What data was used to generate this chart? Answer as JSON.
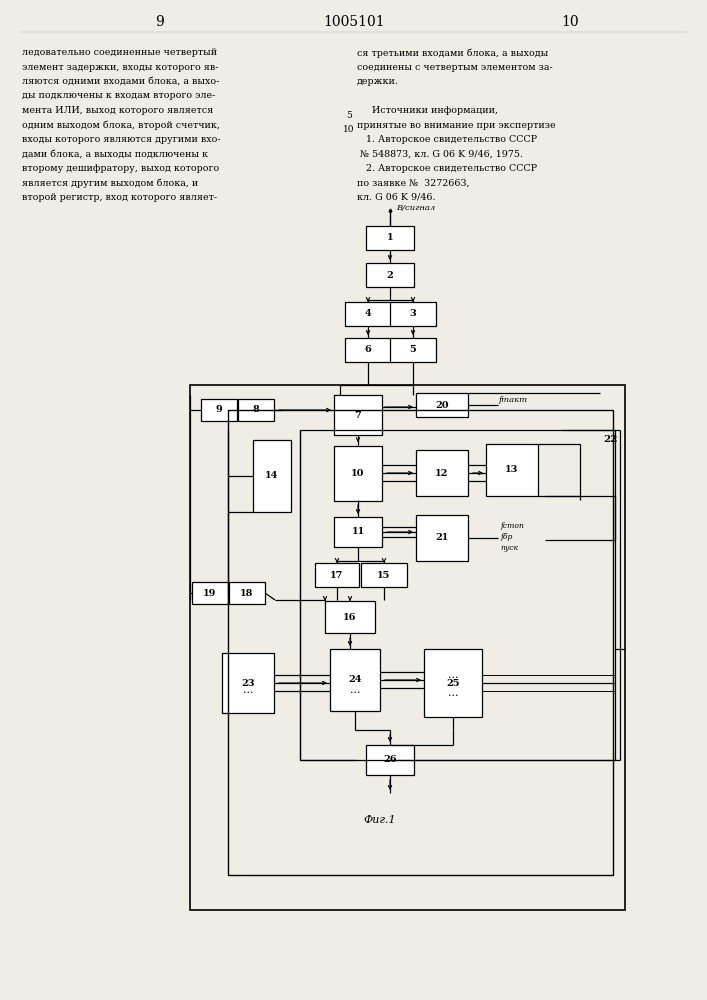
{
  "bg": "#f0ede6",
  "page_left": "9",
  "page_center": "1005101",
  "page_right": "10",
  "col_left": "ледовательно соединенные четвертый\nэлемент задержки, входы которого яв-\nляются одними входами блока, а выхо-\nды подключены к входам второго эле-\nмента ИЛИ, выход которого является\nодним выходом блока, второй счетчик,\nвходы которого являются другими вхо-\nдами блока, а выходы подключены к\nвторому дешифратору, выход которого\nявляется другим выходом блока, и\nвторой регистр, вход которого являет-",
  "col_right": "ся третьими входами блока, а выходы\nсоединены с четвертым элементом за-\nдержки.\n\n     Источники информации,\nпринятые во внимание при экспертизе\n   1. Авторское свидетельство СССР\n № 548873, кл. G 06 K 9/46, 1975.\n   2. Авторское свидетельство СССР\nпо заявке №  3272663,\nкл. G 06 K 9/46.",
  "n5": "5",
  "n10": "10",
  "fig": "Фиг.1",
  "vsignal": "В/сигнал",
  "ftakt": "fтакт",
  "fstop": "fстоп",
  "fbr": "fбр",
  "fpusk": "пуск"
}
